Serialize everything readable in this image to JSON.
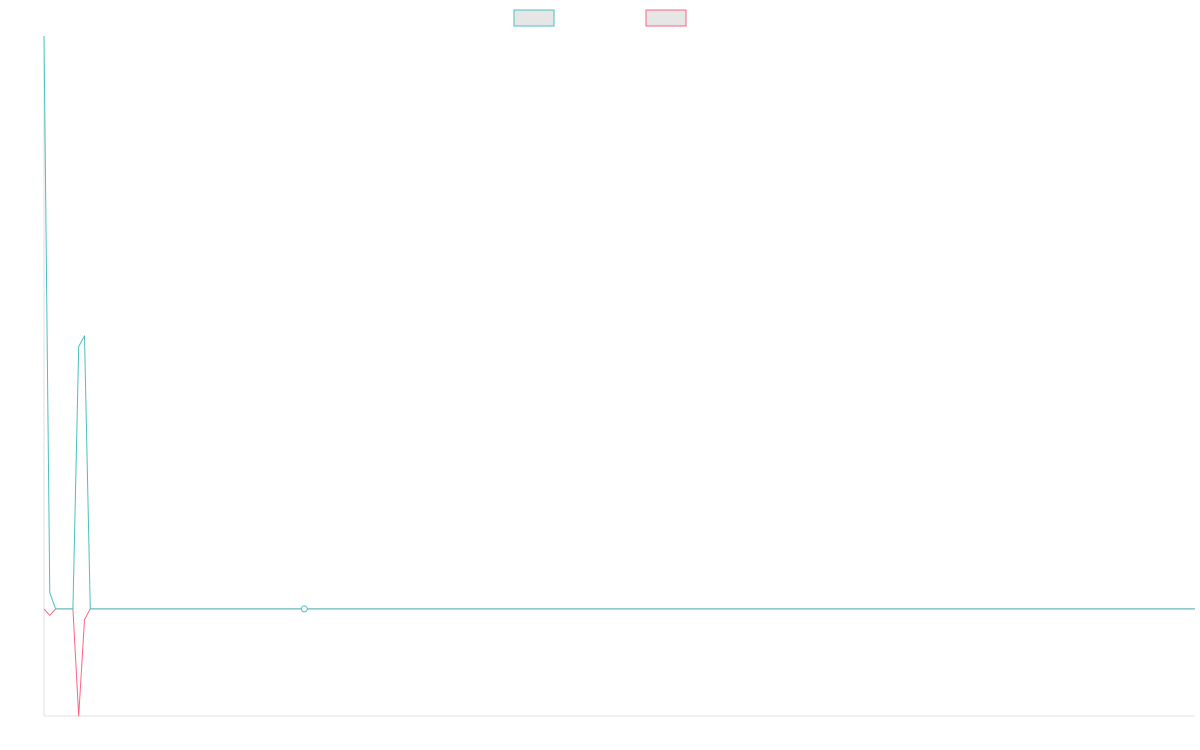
{
  "chart_data": {
    "type": "line",
    "title": "",
    "xlabel": "",
    "ylabel": "",
    "grid": false,
    "legend": "top-center",
    "x": [
      0,
      1,
      2,
      3,
      4,
      5,
      6,
      7,
      8,
      9,
      10,
      11,
      12,
      13,
      14,
      15,
      16,
      17,
      18,
      19,
      20,
      21,
      22,
      23,
      24,
      25,
      26,
      27,
      28,
      29,
      30,
      31,
      32,
      33,
      34,
      35,
      36,
      37,
      38,
      39,
      40,
      41,
      42,
      43,
      44,
      45,
      46,
      47,
      48,
      49,
      50,
      51,
      52,
      53,
      54,
      55,
      56,
      57,
      58,
      59,
      60,
      61,
      62,
      63,
      64,
      65,
      66,
      67,
      68,
      69,
      70,
      71,
      72,
      73,
      74,
      75,
      76,
      77,
      78,
      79,
      80,
      81,
      82,
      83,
      84,
      85,
      86,
      87,
      88,
      89,
      90,
      91,
      92,
      93,
      94,
      95,
      96,
      97,
      98,
      99,
      100,
      101,
      102,
      103,
      104,
      105,
      106,
      107,
      108,
      109,
      110,
      111,
      112,
      113,
      114,
      115,
      116,
      117,
      118,
      119,
      120,
      121,
      122,
      123,
      124,
      125,
      126,
      127,
      128,
      129,
      130,
      131,
      132,
      133,
      134,
      135,
      136,
      137,
      138,
      139,
      140,
      141,
      142,
      143,
      144,
      145,
      146,
      147,
      148,
      149,
      150,
      151,
      152,
      153,
      154,
      155,
      156,
      157,
      158,
      159,
      160,
      161,
      162,
      163,
      164,
      165,
      166,
      167,
      168,
      169,
      170,
      171,
      172,
      173,
      174,
      175,
      176,
      177,
      178,
      179,
      180,
      181,
      182,
      183,
      184,
      185,
      186,
      187,
      188,
      189,
      190,
      191,
      192,
      193,
      194,
      195,
      196,
      197,
      198,
      199
    ],
    "xlim": [
      0,
      199
    ],
    "ylim": [
      -100,
      535
    ],
    "series": [
      {
        "name": "",
        "color": "#4bc0c0",
        "fill": "#e6e6e6",
        "values": [
          535,
          15,
          0,
          0,
          0,
          0,
          245,
          255,
          0,
          0,
          0,
          0,
          0,
          0,
          0,
          0,
          0,
          0,
          0,
          0,
          0,
          0,
          0,
          0,
          0,
          0,
          0,
          0,
          0,
          0,
          0,
          0,
          0,
          0,
          0,
          0,
          0,
          0,
          0,
          0,
          0,
          0,
          0,
          0,
          0,
          0,
          0,
          0,
          0,
          0,
          0,
          0,
          0,
          0,
          0,
          0,
          0,
          0,
          0,
          0,
          0,
          0,
          0,
          0,
          0,
          0,
          0,
          0,
          0,
          0,
          0,
          0,
          0,
          0,
          0,
          0,
          0,
          0,
          0,
          0,
          0,
          0,
          0,
          0,
          0,
          0,
          0,
          0,
          0,
          0,
          0,
          0,
          0,
          0,
          0,
          0,
          0,
          0,
          0,
          0,
          0,
          0,
          0,
          0,
          0,
          0,
          0,
          0,
          0,
          0,
          0,
          0,
          0,
          0,
          0,
          0,
          0,
          0,
          0,
          0,
          0,
          0,
          0,
          0,
          0,
          0,
          0,
          0,
          0,
          0,
          0,
          0,
          0,
          0,
          0,
          0,
          0,
          0,
          0,
          0,
          0,
          0,
          0,
          0,
          0,
          0,
          0,
          0,
          0,
          0,
          0,
          0,
          0,
          0,
          0,
          0,
          0,
          0,
          0,
          0,
          0,
          0,
          0,
          0,
          0,
          0,
          0,
          0,
          0,
          0,
          0,
          0,
          0,
          0,
          0,
          0,
          0,
          0,
          0,
          0,
          0,
          0,
          0,
          0,
          0,
          0,
          0,
          0,
          0,
          0,
          0,
          0,
          0,
          0,
          0,
          0,
          0,
          0,
          0,
          0
        ]
      },
      {
        "name": "",
        "color": "#ff6384",
        "fill": "#e6e6e6",
        "values": [
          0,
          -6,
          0,
          0,
          0,
          0,
          -100,
          -10,
          0,
          0,
          0,
          0,
          0,
          0,
          0,
          0,
          0,
          0,
          0,
          0,
          0,
          0,
          0,
          0,
          0,
          0,
          0,
          0,
          0,
          0,
          0,
          0,
          0,
          0,
          0,
          0,
          0,
          0,
          0,
          0,
          0,
          0,
          0,
          0,
          0,
          0,
          0,
          0,
          0,
          0,
          0,
          0,
          0,
          0,
          0,
          0,
          0,
          0,
          0,
          0,
          0,
          0,
          0,
          0,
          0,
          0,
          0,
          0,
          0,
          0,
          0,
          0,
          0,
          0,
          0,
          0,
          0,
          0,
          0,
          0,
          0,
          0,
          0,
          0,
          0,
          0,
          0,
          0,
          0,
          0,
          0,
          0,
          0,
          0,
          0,
          0,
          0,
          0,
          0,
          0,
          0,
          0,
          0,
          0,
          0,
          0,
          0,
          0,
          0,
          0,
          0,
          0,
          0,
          0,
          0,
          0,
          0,
          0,
          0,
          0,
          0,
          0,
          0,
          0,
          0,
          0,
          0,
          0,
          0,
          0,
          0,
          0,
          0,
          0,
          0,
          0,
          0,
          0,
          0,
          0,
          0,
          0,
          0,
          0,
          0,
          0,
          0,
          0,
          0,
          0,
          0,
          0,
          0,
          0,
          0,
          0,
          0,
          0,
          0,
          0,
          0,
          0,
          0,
          0,
          0,
          0,
          0,
          0,
          0,
          0,
          0,
          0,
          0,
          0,
          0,
          0,
          0,
          0,
          0,
          0,
          0,
          0,
          0,
          0,
          0,
          0,
          0,
          0,
          0,
          0,
          0,
          0,
          0,
          0,
          0,
          0,
          0,
          0,
          0,
          0
        ]
      }
    ],
    "markers": [
      {
        "x": 45,
        "y": 0,
        "color": "#4bc0c0"
      }
    ]
  }
}
